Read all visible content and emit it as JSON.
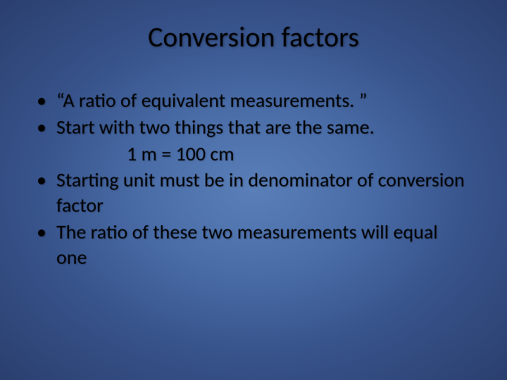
{
  "slide": {
    "title": "Conversion factors",
    "bullets": [
      {
        "text": "“A ratio of equivalent measurements. ”"
      },
      {
        "text": "Start with two things that are the same.",
        "sub": "1 m = 100 cm"
      },
      {
        "text": "Starting unit must be in denominator of conversion factor"
      },
      {
        "text": "The ratio of these two measurements will equal one"
      }
    ],
    "style": {
      "background_gradient_center": "#5a7fb8",
      "background_gradient_edge": "#2a3f6e",
      "text_color": "#000000",
      "title_fontsize": 40,
      "body_fontsize": 28,
      "font_family": "Calibri",
      "bullet_char": "•"
    }
  }
}
